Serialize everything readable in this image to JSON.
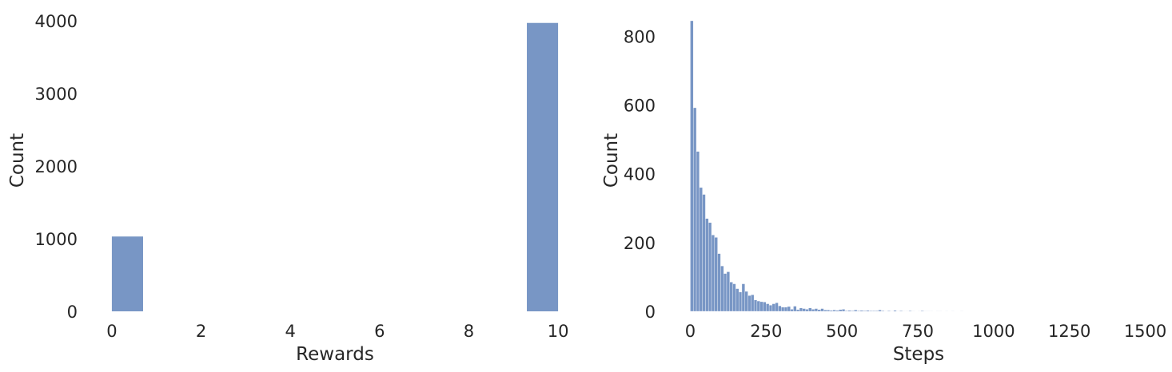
{
  "chart_data": [
    {
      "type": "bar",
      "title": "",
      "xlabel": "Rewards",
      "ylabel": "Count",
      "xlim": [
        -0.5,
        10.5
      ],
      "ylim": [
        0,
        4000
      ],
      "xticks": [
        0,
        2,
        4,
        6,
        8,
        10
      ],
      "yticks": [
        0,
        1000,
        2000,
        3000,
        4000
      ],
      "grid": false,
      "bar_color": "#7896c5",
      "bins": [
        {
          "x0": 0.0,
          "x1": 0.7,
          "count": 1030
        },
        {
          "x0": 9.3,
          "x1": 10.0,
          "count": 3970
        }
      ]
    },
    {
      "type": "bar",
      "title": "",
      "xlabel": "Steps",
      "ylabel": "Count",
      "xlim": [
        -75,
        1575
      ],
      "ylim": [
        0,
        845
      ],
      "xticks": [
        0,
        250,
        500,
        750,
        1000,
        1250,
        1500
      ],
      "yticks": [
        0,
        200,
        400,
        600,
        800
      ],
      "grid": false,
      "bar_color": "#7896c5",
      "bin_start": 0,
      "bin_width": 10,
      "counts": [
        848,
        592,
        465,
        360,
        340,
        270,
        258,
        222,
        215,
        168,
        132,
        110,
        115,
        85,
        80,
        66,
        56,
        80,
        58,
        46,
        48,
        33,
        30,
        28,
        27,
        22,
        18,
        22,
        25,
        16,
        12,
        12,
        14,
        6,
        15,
        5,
        10,
        8,
        6,
        10,
        6,
        8,
        5,
        8,
        4,
        4,
        3,
        4,
        3,
        5,
        6,
        2,
        3,
        2,
        4,
        2,
        3,
        2,
        3,
        2,
        2,
        2,
        4,
        2,
        1,
        2,
        1,
        3,
        1,
        2,
        1,
        1,
        2,
        1,
        0,
        1,
        2,
        1,
        1,
        1,
        0,
        1,
        1,
        0,
        1,
        0,
        1,
        0,
        0,
        1
      ]
    }
  ]
}
